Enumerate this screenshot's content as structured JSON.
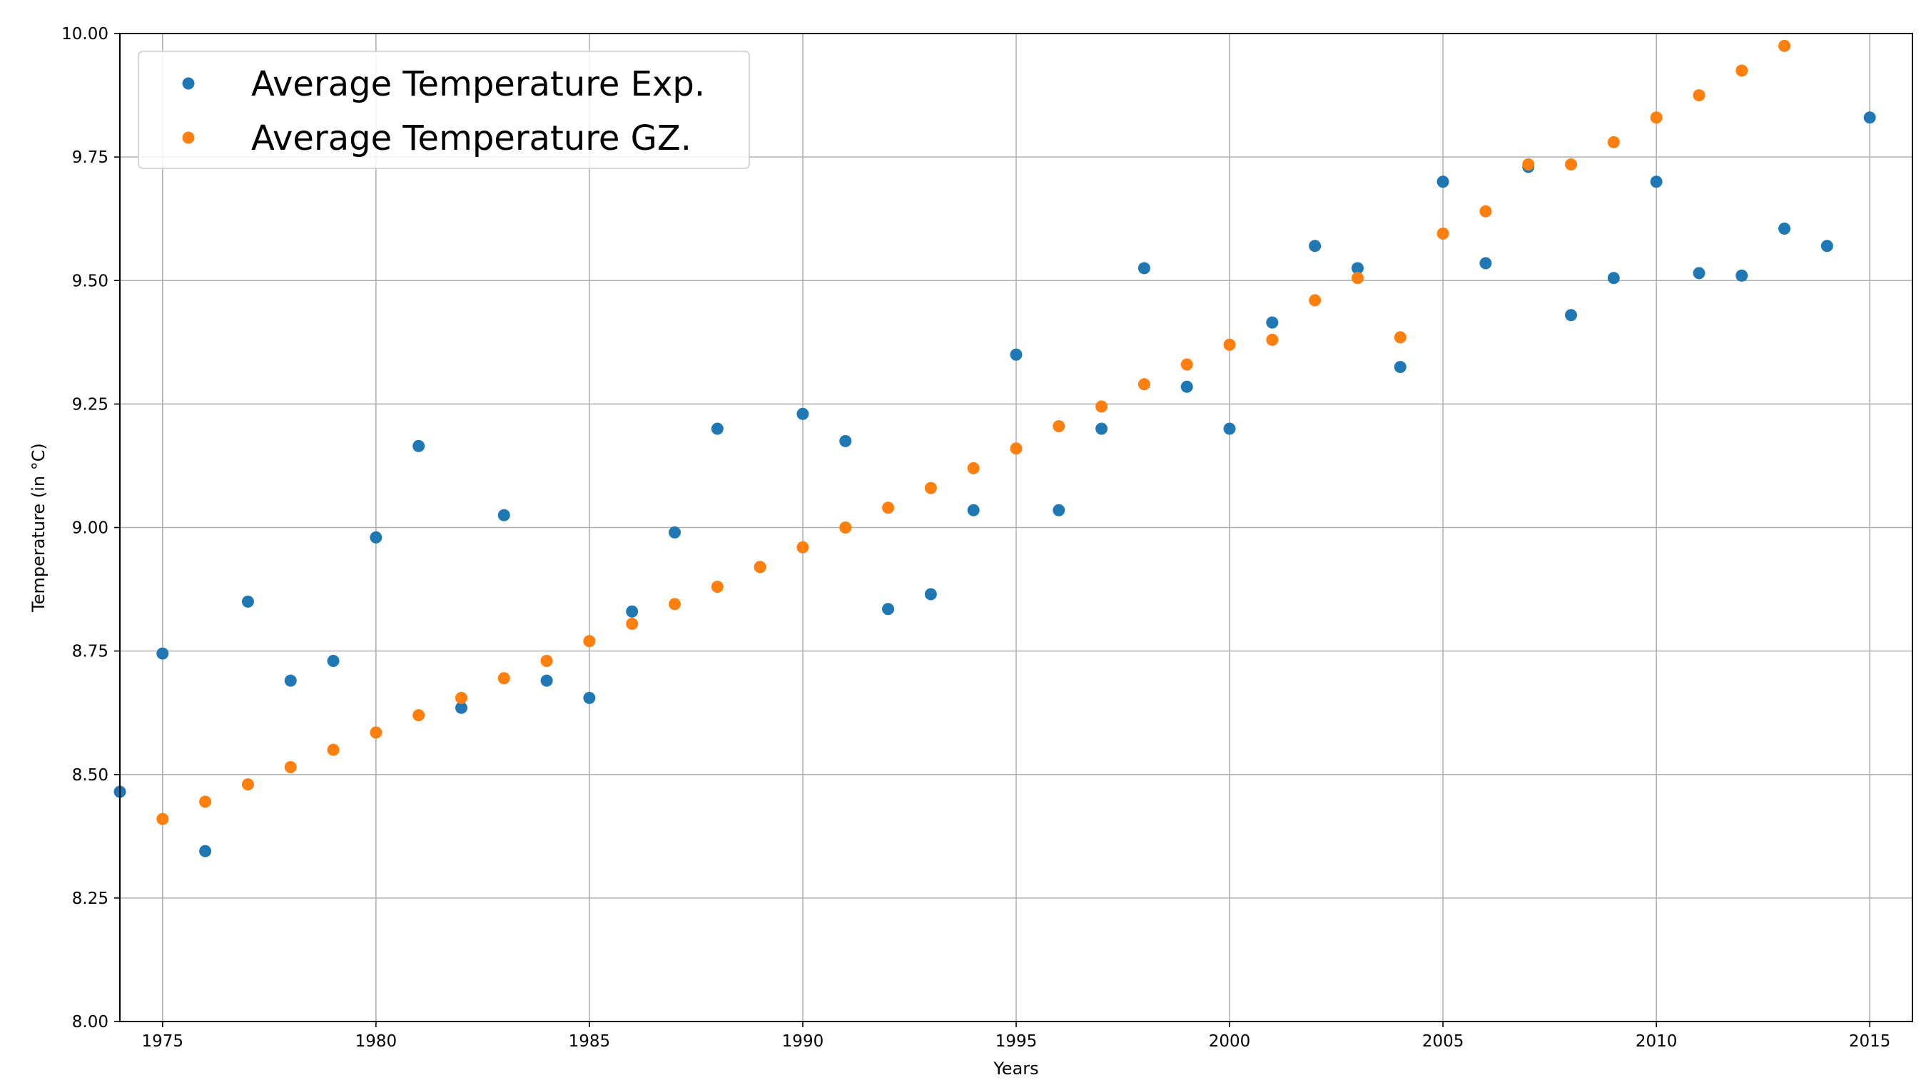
{
  "chart_data": {
    "type": "scatter",
    "title": "",
    "xlabel": "Years",
    "ylabel": "Temperature (in °C)",
    "xlim": [
      1974,
      2016
    ],
    "ylim": [
      8.0,
      10.0
    ],
    "grid": true,
    "legend_position": "top-left",
    "xticks": [
      1975,
      1980,
      1985,
      1990,
      1995,
      2000,
      2005,
      2010,
      2015
    ],
    "xtick_labels": [
      "1975",
      "1980",
      "1985",
      "1990",
      "1995",
      "2000",
      "2005",
      "2010",
      "2015"
    ],
    "yticks": [
      8.0,
      8.25,
      8.5,
      8.75,
      9.0,
      9.25,
      9.5,
      9.75,
      10.0
    ],
    "ytick_labels": [
      "8.00",
      "8.25",
      "8.50",
      "8.75",
      "9.00",
      "9.25",
      "9.50",
      "9.75",
      "10.00"
    ],
    "series": [
      {
        "name": "Average Temperature Exp.",
        "color": "#1f77b4",
        "x": [
          1974,
          1975,
          1976,
          1977,
          1978,
          1979,
          1980,
          1981,
          1982,
          1983,
          1984,
          1985,
          1986,
          1987,
          1988,
          1989,
          1990,
          1991,
          1992,
          1993,
          1994,
          1995,
          1996,
          1997,
          1998,
          1999,
          2000,
          2001,
          2002,
          2003,
          2004,
          2005,
          2006,
          2007,
          2008,
          2009,
          2010,
          2011,
          2012,
          2013,
          2014,
          2015
        ],
        "y": [
          8.465,
          8.745,
          8.345,
          8.85,
          8.69,
          8.73,
          8.98,
          9.165,
          8.635,
          9.025,
          8.69,
          8.655,
          8.83,
          8.99,
          9.2,
          8.92,
          9.23,
          9.175,
          8.835,
          8.865,
          9.035,
          9.35,
          9.035,
          9.2,
          9.525,
          9.285,
          9.2,
          9.415,
          9.57,
          9.525,
          9.325,
          9.7,
          9.535,
          9.73,
          9.43,
          9.505,
          9.7,
          9.515,
          9.51,
          9.605,
          9.57,
          9.83
        ]
      },
      {
        "name": "Average Temperature GZ.",
        "color": "#ff7f0e",
        "x": [
          1975,
          1976,
          1977,
          1978,
          1979,
          1980,
          1981,
          1982,
          1983,
          1984,
          1985,
          1986,
          1987,
          1988,
          1989,
          1990,
          1991,
          1992,
          1993,
          1994,
          1995,
          1996,
          1997,
          1998,
          1999,
          2000,
          2001,
          2002,
          2003,
          2004,
          2005,
          2006,
          2007,
          2008,
          2009,
          2010,
          2011,
          2012,
          2013
        ],
        "y": [
          8.41,
          8.445,
          8.48,
          8.515,
          8.55,
          8.585,
          8.62,
          8.655,
          8.695,
          8.73,
          8.77,
          8.805,
          8.845,
          8.88,
          8.92,
          8.96,
          9.0,
          9.04,
          9.08,
          9.12,
          9.16,
          9.205,
          9.245,
          9.29,
          9.33,
          9.37,
          9.38,
          9.46,
          9.505,
          9.385,
          9.595,
          9.64,
          9.735,
          9.735,
          9.78,
          9.83,
          9.875,
          9.925,
          9.975
        ]
      }
    ]
  }
}
